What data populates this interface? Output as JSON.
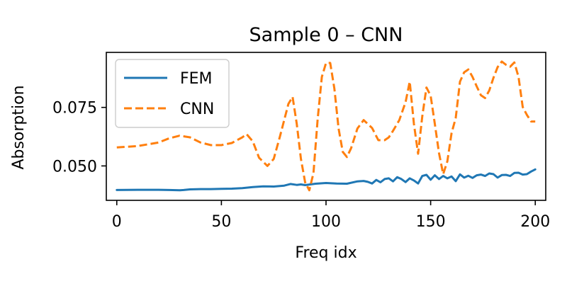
{
  "chart_data": {
    "type": "line",
    "title": "Sample 0 – CNN",
    "xlabel": "Freq idx",
    "ylabel": "Absorption",
    "xlim": [
      -5,
      205
    ],
    "ylim": [
      0.0353,
      0.0985
    ],
    "xticks": [
      {
        "value": 0,
        "label": "0"
      },
      {
        "value": 50,
        "label": "50"
      },
      {
        "value": 100,
        "label": "100"
      },
      {
        "value": 150,
        "label": "150"
      },
      {
        "value": 200,
        "label": "200"
      }
    ],
    "yticks": [
      {
        "value": 0.05,
        "label": "0.050"
      },
      {
        "value": 0.075,
        "label": "0.075"
      }
    ],
    "grid": false,
    "legend_position": "upper-left",
    "series": [
      {
        "name": "FEM",
        "color": "#1f77b4",
        "dash": "solid",
        "x": [
          0,
          10,
          20,
          25,
          30,
          32,
          35,
          40,
          45,
          50,
          55,
          60,
          65,
          70,
          75,
          80,
          83,
          86,
          88,
          90,
          95,
          100,
          105,
          110,
          115,
          118,
          120,
          122,
          124,
          126,
          128,
          130,
          132,
          134,
          136,
          138,
          140,
          142,
          144,
          146,
          148,
          150,
          152,
          154,
          156,
          158,
          160,
          162,
          164,
          166,
          168,
          170,
          172,
          174,
          176,
          178,
          180,
          182,
          184,
          186,
          188,
          190,
          192,
          194,
          196,
          198,
          200
        ],
        "y": [
          0.0397,
          0.0398,
          0.0398,
          0.0397,
          0.0396,
          0.0397,
          0.04,
          0.0401,
          0.0401,
          0.0402,
          0.0403,
          0.0405,
          0.041,
          0.0413,
          0.0412,
          0.0416,
          0.0423,
          0.0419,
          0.0421,
          0.0418,
          0.0424,
          0.0427,
          0.0425,
          0.0424,
          0.0434,
          0.0436,
          0.0432,
          0.0425,
          0.044,
          0.043,
          0.0444,
          0.0447,
          0.0434,
          0.0452,
          0.0444,
          0.0431,
          0.0447,
          0.0438,
          0.0425,
          0.0457,
          0.0462,
          0.0441,
          0.046,
          0.0444,
          0.0457,
          0.0447,
          0.0455,
          0.0435,
          0.0464,
          0.045,
          0.0458,
          0.0449,
          0.046,
          0.0463,
          0.0457,
          0.0468,
          0.0465,
          0.045,
          0.0461,
          0.0462,
          0.0457,
          0.047,
          0.0471,
          0.0463,
          0.0465,
          0.0476,
          0.0485
        ]
      },
      {
        "name": "CNN",
        "color": "#ff7f0e",
        "dash": "dashed",
        "x": [
          0,
          10,
          20,
          25,
          30,
          35,
          40,
          45,
          50,
          55,
          60,
          62,
          65,
          68,
          72,
          75,
          78,
          82,
          84,
          86,
          88,
          90,
          92,
          94,
          96,
          98,
          100,
          102,
          104,
          106,
          108,
          110,
          112,
          115,
          118,
          122,
          125,
          128,
          130,
          132,
          135,
          138,
          140,
          142,
          144,
          146,
          148,
          150,
          152,
          154,
          156,
          158,
          160,
          162,
          164,
          166,
          168,
          170,
          172,
          174,
          176,
          178,
          180,
          182,
          184,
          186,
          188,
          190,
          192,
          194,
          196,
          198,
          200
        ],
        "y": [
          0.0579,
          0.0585,
          0.06,
          0.0618,
          0.0629,
          0.0622,
          0.06,
          0.0589,
          0.0589,
          0.0598,
          0.0622,
          0.0636,
          0.0605,
          0.0535,
          0.05,
          0.053,
          0.0626,
          0.0765,
          0.0795,
          0.068,
          0.053,
          0.043,
          0.0396,
          0.047,
          0.07,
          0.088,
          0.094,
          0.094,
          0.083,
          0.066,
          0.056,
          0.0538,
          0.0576,
          0.066,
          0.0696,
          0.0662,
          0.061,
          0.061,
          0.0622,
          0.065,
          0.0695,
          0.0772,
          0.086,
          0.068,
          0.0552,
          0.0712,
          0.0835,
          0.08,
          0.068,
          0.0555,
          0.0465,
          0.052,
          0.064,
          0.0705,
          0.086,
          0.09,
          0.0912,
          0.088,
          0.084,
          0.0802,
          0.079,
          0.0822,
          0.0876,
          0.0922,
          0.0946,
          0.0932,
          0.0924,
          0.0942,
          0.088,
          0.0752,
          0.0718,
          0.069,
          0.069
        ]
      }
    ]
  }
}
